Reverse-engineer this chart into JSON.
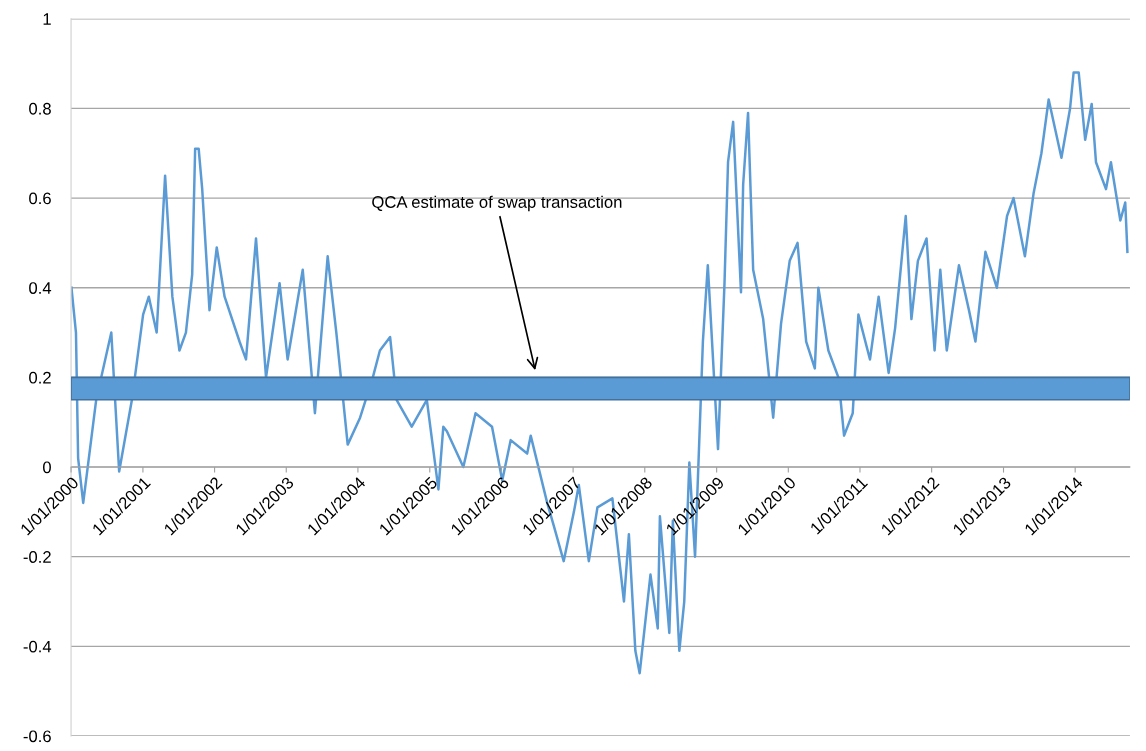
{
  "chart_data": {
    "type": "line",
    "x": [
      "2000-01-03",
      "2000-01-26",
      "2000-02-06",
      "2000-03-03",
      "2000-05-08",
      "2000-07-24",
      "2000-09-02",
      "2000-11-06",
      "2001-01-02",
      "2001-01-31",
      "2001-03-12",
      "2001-04-24",
      "2001-05-31",
      "2001-07-06",
      "2001-08-08",
      "2001-09-09",
      "2001-09-24",
      "2001-10-12",
      "2001-10-30",
      "2001-12-06",
      "2002-01-12",
      "2002-02-21",
      "2002-05-08",
      "2002-06-10",
      "2002-07-31",
      "2002-09-20",
      "2002-11-28",
      "2003-01-08",
      "2003-03-26",
      "2003-05-27",
      "2003-07-31",
      "2003-09-13",
      "2003-11-10",
      "2004-01-12",
      "2004-03-17",
      "2004-04-22",
      "2004-06-13",
      "2004-07-16",
      "2004-10-01",
      "2004-12-17",
      "2005-02-14",
      "2005-03-11",
      "2005-03-29",
      "2005-06-21",
      "2005-08-22",
      "2005-11-14",
      "2006-01-05",
      "2006-02-17",
      "2006-05-12",
      "2006-05-30",
      "2006-08-22",
      "2006-09-24",
      "2006-11-14",
      "2007-01-05",
      "2007-01-30",
      "2007-03-22",
      "2007-05-05",
      "2007-07-20",
      "2007-09-17",
      "2007-10-12",
      "2007-11-14",
      "2007-12-06",
      "2008-01-30",
      "2008-03-07",
      "2008-03-18",
      "2008-05-05",
      "2008-05-23",
      "2008-06-25",
      "2008-07-20",
      "2008-08-15",
      "2008-09-13",
      "2008-10-23",
      "2008-11-17",
      "2009-01-08",
      "2009-02-10",
      "2009-02-28",
      "2009-03-26",
      "2009-05-05",
      "2009-05-16",
      "2009-06-10",
      "2009-07-06",
      "2009-08-26",
      "2009-10-16",
      "2009-11-25",
      "2010-01-08",
      "2010-02-17",
      "2010-04-02",
      "2010-05-16",
      "2010-06-03",
      "2010-07-24",
      "2010-09-13",
      "2010-10-12",
      "2010-11-25",
      "2010-12-24",
      "2011-02-21",
      "2011-04-06",
      "2011-05-27",
      "2011-06-29",
      "2011-08-22",
      "2011-09-20",
      "2011-10-23",
      "2011-12-06",
      "2012-01-16",
      "2012-02-14",
      "2012-03-18",
      "2012-05-19",
      "2012-07-09",
      "2012-08-11",
      "2012-10-01",
      "2012-11-28",
      "2013-01-19",
      "2013-02-21",
      "2013-04-20",
      "2013-06-03",
      "2013-07-13",
      "2013-08-19",
      "2013-10-23",
      "2013-12-06",
      "2013-12-24",
      "2014-01-19",
      "2014-02-21",
      "2014-03-26",
      "2014-04-17",
      "2014-06-07",
      "2014-07-02",
      "2014-08-19",
      "2014-09-13",
      "2014-09-24"
    ],
    "series": [
      {
        "color": "#5b9bd5",
        "values": [
          0.4,
          0.3,
          0.02,
          -0.08,
          0.15,
          0.3,
          -0.01,
          0.15,
          0.34,
          0.38,
          0.3,
          0.65,
          0.38,
          0.26,
          0.3,
          0.43,
          0.71,
          0.71,
          0.62,
          0.35,
          0.49,
          0.38,
          0.28,
          0.24,
          0.51,
          0.2,
          0.41,
          0.24,
          0.44,
          0.12,
          0.47,
          0.3,
          0.05,
          0.11,
          0.2,
          0.26,
          0.29,
          0.15,
          0.09,
          0.15,
          -0.05,
          0.09,
          0.08,
          0.0,
          0.12,
          0.09,
          -0.03,
          0.06,
          0.03,
          0.07,
          -0.08,
          -0.13,
          -0.21,
          -0.1,
          -0.04,
          -0.21,
          -0.09,
          -0.07,
          -0.3,
          -0.15,
          -0.41,
          -0.46,
          -0.24,
          -0.36,
          -0.11,
          -0.37,
          -0.12,
          -0.41,
          -0.3,
          0.01,
          -0.2,
          0.28,
          0.45,
          0.04,
          0.41,
          0.68,
          0.77,
          0.39,
          0.63,
          0.79,
          0.44,
          0.33,
          0.11,
          0.32,
          0.46,
          0.5,
          0.28,
          0.22,
          0.4,
          0.26,
          0.2,
          0.07,
          0.12,
          0.34,
          0.24,
          0.38,
          0.21,
          0.31,
          0.56,
          0.33,
          0.46,
          0.51,
          0.26,
          0.44,
          0.26,
          0.45,
          0.35,
          0.28,
          0.48,
          0.4,
          0.56,
          0.6,
          0.47,
          0.61,
          0.7,
          0.82,
          0.69,
          0.8,
          0.88,
          0.88,
          0.73,
          0.81,
          0.68,
          0.62,
          0.68,
          0.55,
          0.59,
          0.48
        ]
      }
    ],
    "xlim": [
      "2000-01-01",
      "2014-10-07"
    ],
    "xticks": [
      {
        "value": "2000-01-01",
        "label": "1/01/2000"
      },
      {
        "value": "2001-01-01",
        "label": "1/01/2001"
      },
      {
        "value": "2002-01-01",
        "label": "1/01/2002"
      },
      {
        "value": "2003-01-01",
        "label": "1/01/2003"
      },
      {
        "value": "2004-01-01",
        "label": "1/01/2004"
      },
      {
        "value": "2005-01-01",
        "label": "1/01/2005"
      },
      {
        "value": "2006-01-01",
        "label": "1/01/2006"
      },
      {
        "value": "2007-01-01",
        "label": "1/01/2007"
      },
      {
        "value": "2008-01-01",
        "label": "1/01/2008"
      },
      {
        "value": "2009-01-01",
        "label": "1/01/2009"
      },
      {
        "value": "2010-01-01",
        "label": "1/01/2010"
      },
      {
        "value": "2011-01-01",
        "label": "1/01/2011"
      },
      {
        "value": "2012-01-01",
        "label": "1/01/2012"
      },
      {
        "value": "2013-01-01",
        "label": "1/01/2013"
      },
      {
        "value": "2014-01-01",
        "label": "1/01/2014"
      }
    ],
    "ylim": [
      -0.6,
      1
    ],
    "yticks": [
      -0.6,
      -0.4,
      -0.2,
      0,
      0.2,
      0.4,
      0.6,
      0.8,
      1
    ],
    "grid": "y",
    "bands": [
      {
        "axis": "y",
        "from": 0.15,
        "to": 0.2,
        "color": "#5b9bd5"
      }
    ],
    "annotations": [
      {
        "text": "QCA estimate of swap transaction",
        "x": "2006-06-25",
        "y": 0.21
      }
    ]
  }
}
